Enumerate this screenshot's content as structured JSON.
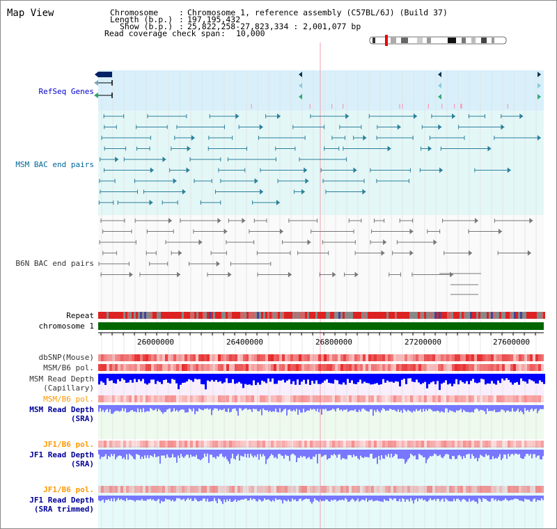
{
  "window": {
    "title": "Map View"
  },
  "header": {
    "chromosome_key": "Chromosome",
    "chromosome_val": "Chromosome 1, reference assembly (C57BL/6J) (Build 37)",
    "length_key": "Length (b.p.)",
    "length_val": "197,195,432",
    "show_key": "Show (b.p.)",
    "show_val": "25,822,258-27,823,334 : 2,001,077 bp",
    "coverage_key": "Read coverage check span",
    "coverage_val": "10,000"
  },
  "tracks": {
    "refseq": "RefSeq Genes",
    "msm_bac": "MSM BAC end pairs",
    "b6n_bac": "B6N BAC end pairs",
    "repeat": "Repeat",
    "chromosome": "chromosome 1",
    "dbsnp": "dbSNP(Mouse)",
    "msm_b6_pol": "MSM/B6 pol.",
    "msm_depth_cap_1": "MSM Read Depth",
    "msm_depth_cap_2": "(Capillary)",
    "msm_b6_pol_2": "MSM/B6 pol.",
    "msm_depth_sra_1": "MSM Read Depth",
    "msm_depth_sra_2": "(SRA)",
    "jf1_b6_pol": "JF1/B6 pol.",
    "jf1_depth_sra_1": "JF1 Read Depth",
    "jf1_depth_sra_2": "(SRA)",
    "jf1_b6_pol_2": "JF1/B6 pol.",
    "jf1_depth_trim_1": "JF1 Read Depth",
    "jf1_depth_trim_2": "(SRA trimmed)"
  },
  "axis": {
    "ticks": [
      "26000000",
      "26400000",
      "26800000",
      "27200000",
      "27600000"
    ]
  },
  "colors": {
    "refseq_label": "#0000cc",
    "msm_label": "#006699",
    "orange_label": "#ff9900",
    "navy_label": "#000099",
    "chromosome_bar": "#006600",
    "gene_fill": "#002266",
    "refseq_bg": "#d9f0fb",
    "msm_bg": "#e4f7f7",
    "depth_capillary": "#0000ff",
    "depth_sra": "#7777ff"
  }
}
